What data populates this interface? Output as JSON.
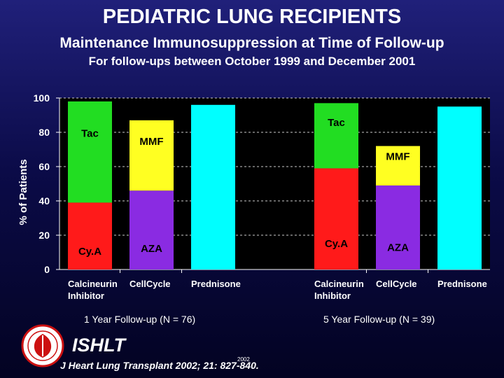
{
  "title": "PEDIATRIC LUNG RECIPIENTS",
  "subtitle": "Maintenance Immunosuppression at Time of Follow-up",
  "subtitle2": "For follow-ups between October 1999 and December 2001",
  "footer": {
    "org": "ISHLT",
    "citation": "J Heart Lung Transplant 2002; 21: 827-840.",
    "year": "2002"
  },
  "chart_data": {
    "type": "bar",
    "stacked": true,
    "ylabel": "% of Patients",
    "ylim": [
      0,
      100
    ],
    "yticks": [
      0,
      20,
      40,
      60,
      80,
      100
    ],
    "grid": true,
    "groups": [
      {
        "label": "1 Year Follow-up  (N = 76)",
        "bars": [
          {
            "label": "Calcineurin\nInhibitor",
            "segments": [
              {
                "name": "Cy.A",
                "value": 39,
                "color": "#ff1a1a"
              },
              {
                "name": "Tac",
                "value": 59,
                "color": "#22dd22"
              }
            ]
          },
          {
            "label": "CellCycle",
            "segments": [
              {
                "name": "AZA",
                "value": 46,
                "color": "#8a2be2"
              },
              {
                "name": "MMF",
                "value": 41,
                "color": "#ffff22"
              }
            ]
          },
          {
            "label": "Prednisone",
            "segments": [
              {
                "name": "",
                "value": 96,
                "color": "#00ffff"
              }
            ]
          }
        ]
      },
      {
        "label": "5 Year Follow-up  (N = 39)",
        "bars": [
          {
            "label": "Calcineurin\nInhibitor",
            "segments": [
              {
                "name": "Cy.A",
                "value": 59,
                "color": "#ff1a1a"
              },
              {
                "name": "Tac",
                "value": 38,
                "color": "#22dd22"
              }
            ]
          },
          {
            "label": "CellCycle",
            "segments": [
              {
                "name": "AZA",
                "value": 49,
                "color": "#8a2be2"
              },
              {
                "name": "MMF",
                "value": 23,
                "color": "#ffff22"
              }
            ]
          },
          {
            "label": "Prednisone",
            "segments": [
              {
                "name": "",
                "value": 95,
                "color": "#00ffff"
              }
            ]
          }
        ]
      }
    ]
  }
}
